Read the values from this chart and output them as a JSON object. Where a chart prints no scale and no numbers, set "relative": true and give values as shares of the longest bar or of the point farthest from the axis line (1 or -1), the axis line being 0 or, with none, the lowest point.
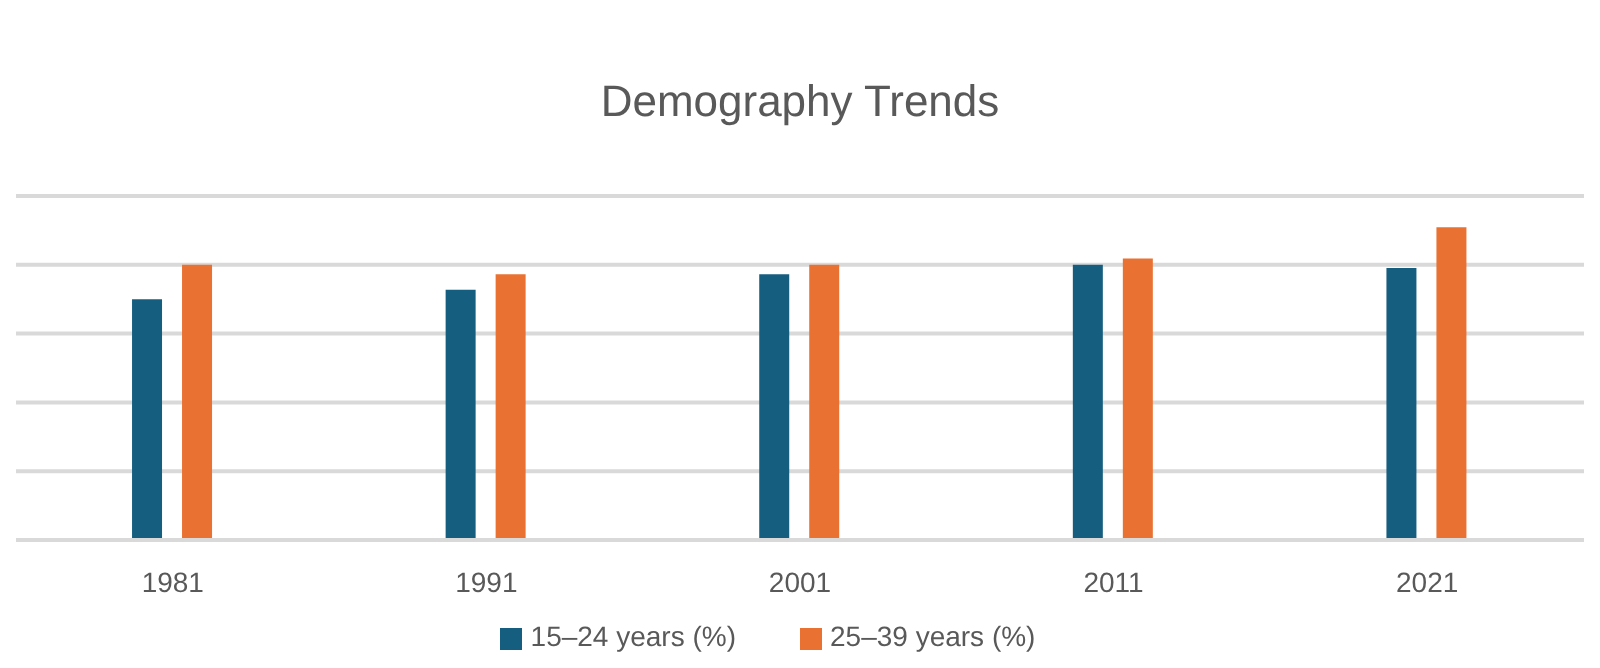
{
  "chart_data": {
    "type": "bar",
    "title": "Demography Trends",
    "relative": true,
    "categories": [
      "1981",
      "1991",
      "2001",
      "2011",
      "2021"
    ],
    "series": [
      {
        "name": "15–24 years (%)",
        "color": "#165e80",
        "values": [
          0.77,
          0.8,
          0.85,
          0.88,
          0.87
        ]
      },
      {
        "name": "25–39 years (%)",
        "color": "#e97132",
        "values": [
          0.88,
          0.85,
          0.88,
          0.9,
          1
        ]
      }
    ],
    "grid": "y",
    "legend": "bottom"
  }
}
